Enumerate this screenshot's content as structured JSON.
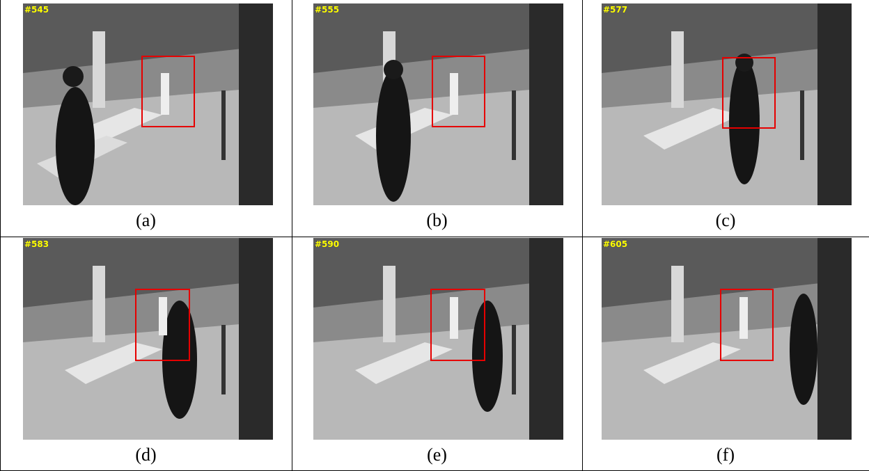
{
  "panels": [
    {
      "frame": "#545",
      "caption": "(a)"
    },
    {
      "frame": "#555",
      "caption": "(b)"
    },
    {
      "frame": "#577",
      "caption": "(c)"
    },
    {
      "frame": "#583",
      "caption": "(d)"
    },
    {
      "frame": "#590",
      "caption": "(e)"
    },
    {
      "frame": "#605",
      "caption": "(f)"
    }
  ],
  "colors": {
    "bbox": "#e60000",
    "frame_number": "#ffff00"
  }
}
